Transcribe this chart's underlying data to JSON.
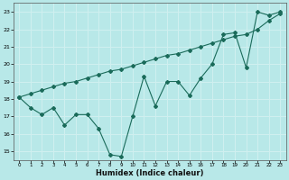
{
  "x_data": [
    0,
    1,
    2,
    3,
    4,
    5,
    6,
    7,
    8,
    9,
    10,
    11,
    12,
    13,
    14,
    15,
    16,
    17,
    18,
    19,
    20,
    21,
    22,
    23
  ],
  "y_line1": [
    18.1,
    17.5,
    17.1,
    17.5,
    16.5,
    17.1,
    17.1,
    16.3,
    14.8,
    14.7,
    17.0,
    19.3,
    17.6,
    19.0,
    19.0,
    18.2,
    19.2,
    20.0,
    21.7,
    21.8,
    19.8,
    23.0,
    22.8,
    23.0
  ],
  "y_line2": [
    18.1,
    18.3,
    18.5,
    18.7,
    18.9,
    19.0,
    19.2,
    19.4,
    19.6,
    19.7,
    19.9,
    20.1,
    20.3,
    20.5,
    20.6,
    20.8,
    21.0,
    21.2,
    21.4,
    21.6,
    21.7,
    22.0,
    22.5,
    22.9
  ],
  "line_color": "#1a6b5a",
  "bg_color": "#b8e8e8",
  "grid_color": "#d0f0f0",
  "xlabel": "Humidex (Indice chaleur)",
  "xlim": [
    -0.5,
    23.5
  ],
  "ylim": [
    14.5,
    23.5
  ],
  "yticks": [
    15,
    16,
    17,
    18,
    19,
    20,
    21,
    22,
    23
  ],
  "xticks": [
    0,
    1,
    2,
    3,
    4,
    5,
    6,
    7,
    8,
    9,
    10,
    11,
    12,
    13,
    14,
    15,
    16,
    17,
    18,
    19,
    20,
    21,
    22,
    23
  ]
}
